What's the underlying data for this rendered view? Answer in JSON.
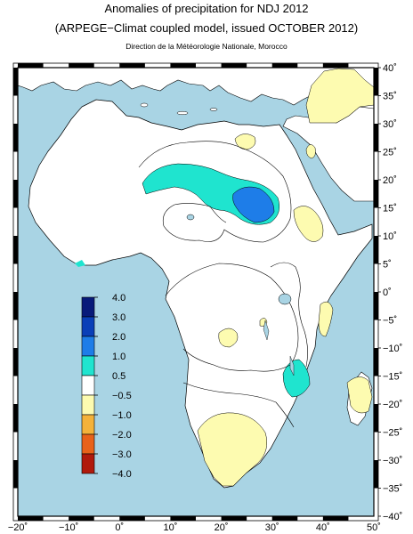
{
  "title": "Anomalies of precipitation for NDJ 2012",
  "subtitle": "(ARPEGE−Climat coupled model, issued OCTOBER 2012)",
  "credit": "Direction de la Météorologie Nationale, Morocco",
  "axes": {
    "lat_labels": [
      "40˚",
      "35˚",
      "30˚",
      "25˚",
      "20˚",
      "15˚",
      "10˚",
      "5˚",
      "0˚",
      "−5˚",
      "−10˚",
      "−15˚",
      "−20˚",
      "−25˚",
      "−30˚",
      "−35˚",
      "−40˚"
    ],
    "lon_labels": [
      "−20˚",
      "−10˚",
      "0˚",
      "10˚",
      "20˚",
      "30˚",
      "40˚",
      "50˚"
    ]
  },
  "colorbar": {
    "labels": [
      "4.0",
      "3.0",
      "2.0",
      "1.0",
      "0.5",
      "−0.5",
      "−1.0",
      "−2.0",
      "−3.0",
      "−4.0"
    ],
    "colors": [
      "#081a7a",
      "#0a3fb8",
      "#1e7de8",
      "#1fe4cf",
      "#ffffff",
      "#fdfbb0",
      "#f4b23a",
      "#e8621a",
      "#b01a0c"
    ]
  },
  "colors": {
    "ocean": "#a9d4e4",
    "land": "#ffffff",
    "dry": "#fdfbb0",
    "wet_light": "#1fe4cf",
    "wet_mid": "#1e7de8"
  }
}
